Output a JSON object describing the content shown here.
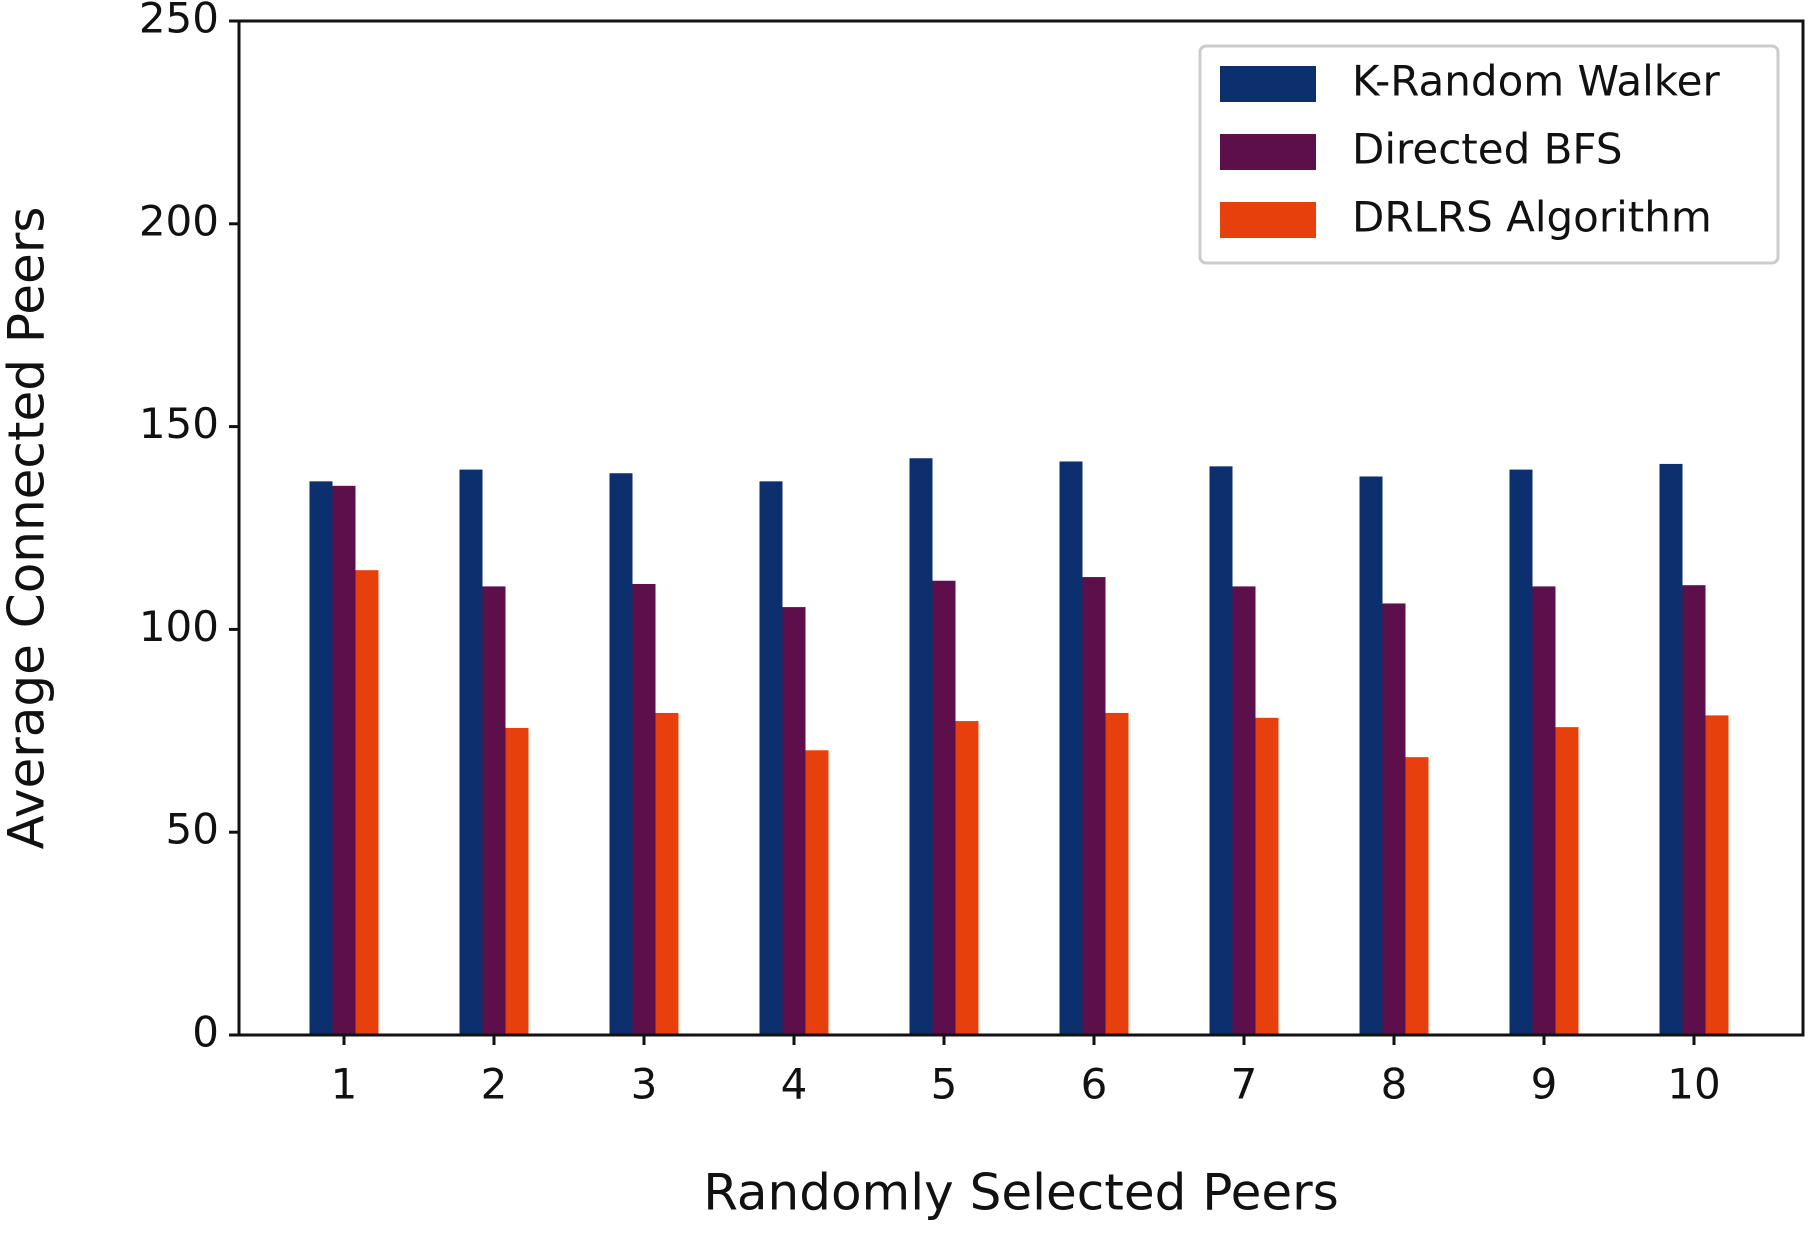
{
  "chart_data": {
    "type": "bar",
    "x_label": "Randomly Selected Peers",
    "y_label": "Average Connected Peers",
    "categories": [
      "1",
      "2",
      "3",
      "4",
      "5",
      "6",
      "7",
      "8",
      "9",
      "10"
    ],
    "series": [
      {
        "name": "K-Random Walker",
        "color": "#0c2f6e",
        "values": [
          136.5,
          139.4,
          138.5,
          136.5,
          142.2,
          141.4,
          140.2,
          137.7,
          139.4,
          140.8
        ]
      },
      {
        "name": "Directed BFS",
        "color": "#5c0f4a",
        "values": [
          135.4,
          110.6,
          111.2,
          105.5,
          112,
          112.9,
          110.6,
          106.4,
          110.6,
          110.9
        ]
      },
      {
        "name": "DRLRS Algorithm",
        "color": "#e8400c",
        "values": [
          114.6,
          75.7,
          79.4,
          70.2,
          77.4,
          79.4,
          78.2,
          68.5,
          75.9,
          78.8
        ]
      }
    ],
    "ylim": [
      0,
      250
    ],
    "yticks": [
      0,
      50,
      100,
      150,
      200,
      250
    ],
    "legend": "upper right"
  }
}
